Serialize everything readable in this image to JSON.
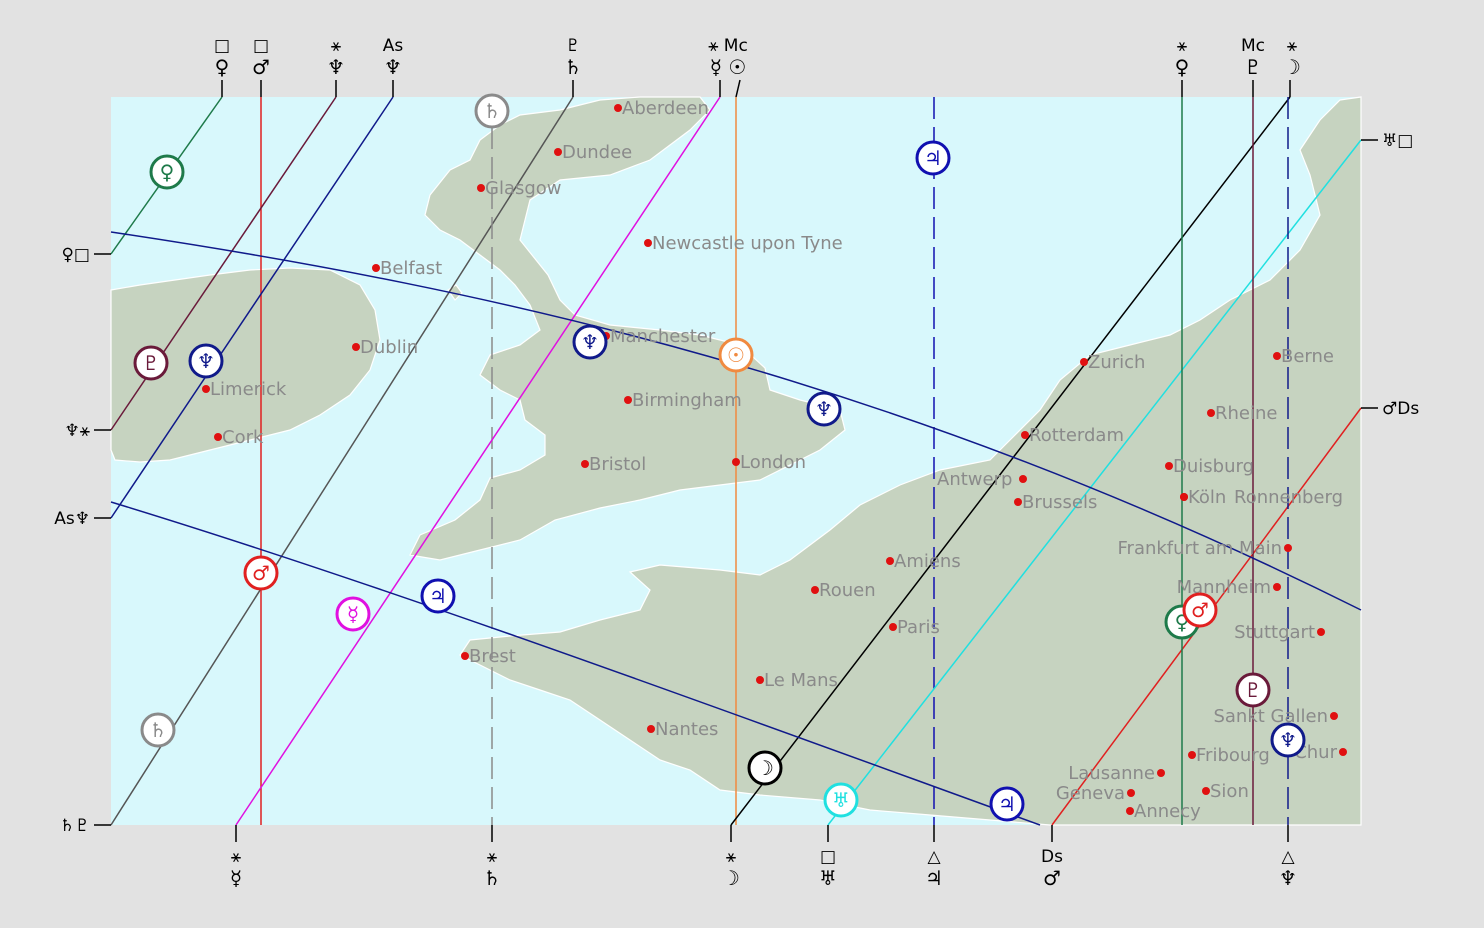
{
  "colors": {
    "outer_bg": "#e2e2e2",
    "sea": "#d8f8fc",
    "land": "#c6d3c0",
    "land_stroke": "#ffffff",
    "city_dot": "#e01010",
    "city_text": "#8a8a8a",
    "venus": "#1e7a4a",
    "mars": "#e02020",
    "pluto": "#6a1a3a",
    "neptune": "#101a8a",
    "moon": "#000000",
    "saturn": "#8a8a8a",
    "mercury": "#e010e0",
    "sun": "#f08a40",
    "uranus": "#20e0e0",
    "jupiter": "#1010b0"
  },
  "cities": [
    {
      "name": "Aberdeen"
    },
    {
      "name": "Dundee"
    },
    {
      "name": "Glasgow"
    },
    {
      "name": "Newcastle upon Tyne"
    },
    {
      "name": "Belfast"
    },
    {
      "name": "Dublin"
    },
    {
      "name": "Manchester"
    },
    {
      "name": "Limerick"
    },
    {
      "name": "Birmingham"
    },
    {
      "name": "Cork"
    },
    {
      "name": "Bristol"
    },
    {
      "name": "London"
    },
    {
      "name": "Zurich"
    },
    {
      "name": "Berne"
    },
    {
      "name": "Rheine"
    },
    {
      "name": "Rotterdam"
    },
    {
      "name": "Antwerp"
    },
    {
      "name": "Duisburg"
    },
    {
      "name": "Köln"
    },
    {
      "name": "Ronnenberg"
    },
    {
      "name": "Brussels"
    },
    {
      "name": "Frankfurt am Main"
    },
    {
      "name": "Amiens"
    },
    {
      "name": "Rouen"
    },
    {
      "name": "Mannheim"
    },
    {
      "name": "Paris"
    },
    {
      "name": "Stuttgart"
    },
    {
      "name": "Brest"
    },
    {
      "name": "Le Mans"
    },
    {
      "name": "Sankt Gallen"
    },
    {
      "name": "Nantes"
    },
    {
      "name": "Fribourg"
    },
    {
      "name": "Chur"
    },
    {
      "name": "Lausanne"
    },
    {
      "name": "Geneva"
    },
    {
      "name": "Sion"
    },
    {
      "name": "Annecy"
    }
  ],
  "top_labels": [
    {
      "line1": "□",
      "line2": "♀"
    },
    {
      "line1": "□",
      "line2": "♂"
    },
    {
      "line1": "⚹",
      "line2": "♆"
    },
    {
      "line1": "As",
      "line2": "♆"
    },
    {
      "line1": "♇",
      "line2": "♄"
    },
    {
      "line1": "⚹ Mc",
      "line2": "☿ ☉"
    },
    {
      "line1": "⚹",
      "line2": "♀"
    },
    {
      "line1": "Mc",
      "line2": "♇"
    },
    {
      "line1": "⚹",
      "line2": "☽"
    }
  ],
  "bottom_labels": [
    {
      "line1": "⚹",
      "line2": "☿"
    },
    {
      "line1": "⚹",
      "line2": "♄"
    },
    {
      "line1": "⚹",
      "line2": "☽"
    },
    {
      "line1": "□",
      "line2": "♅"
    },
    {
      "line1": "△",
      "line2": "♃"
    },
    {
      "line1": "Ds",
      "line2": "♂"
    },
    {
      "line1": "△",
      "line2": "♆"
    }
  ],
  "left_labels": [
    "♀□",
    "♆⚹",
    "As♆",
    "♄♇"
  ],
  "right_labels": [
    "♅□",
    "♂Ds"
  ],
  "planet_markers": [
    {
      "glyph": "♄",
      "planet": "saturn"
    },
    {
      "glyph": "♀",
      "planet": "venus"
    },
    {
      "glyph": "♃",
      "planet": "jupiter"
    },
    {
      "glyph": "♇",
      "planet": "pluto"
    },
    {
      "glyph": "♆",
      "planet": "neptune"
    },
    {
      "glyph": "♆",
      "planet": "neptune"
    },
    {
      "glyph": "☉",
      "planet": "sun"
    },
    {
      "glyph": "♆",
      "planet": "neptune"
    },
    {
      "glyph": "♂",
      "planet": "mars"
    },
    {
      "glyph": "☿",
      "planet": "mercury"
    },
    {
      "glyph": "♃",
      "planet": "jupiter"
    },
    {
      "glyph": "♄",
      "planet": "saturn"
    },
    {
      "glyph": "☽",
      "planet": "moon"
    },
    {
      "glyph": "♅",
      "planet": "uranus"
    },
    {
      "glyph": "♃",
      "planet": "jupiter"
    },
    {
      "glyph": "♀",
      "planet": "venus"
    },
    {
      "glyph": "♂",
      "planet": "mars"
    },
    {
      "glyph": "♇",
      "planet": "pluto"
    },
    {
      "glyph": "♆",
      "planet": "neptune"
    }
  ]
}
